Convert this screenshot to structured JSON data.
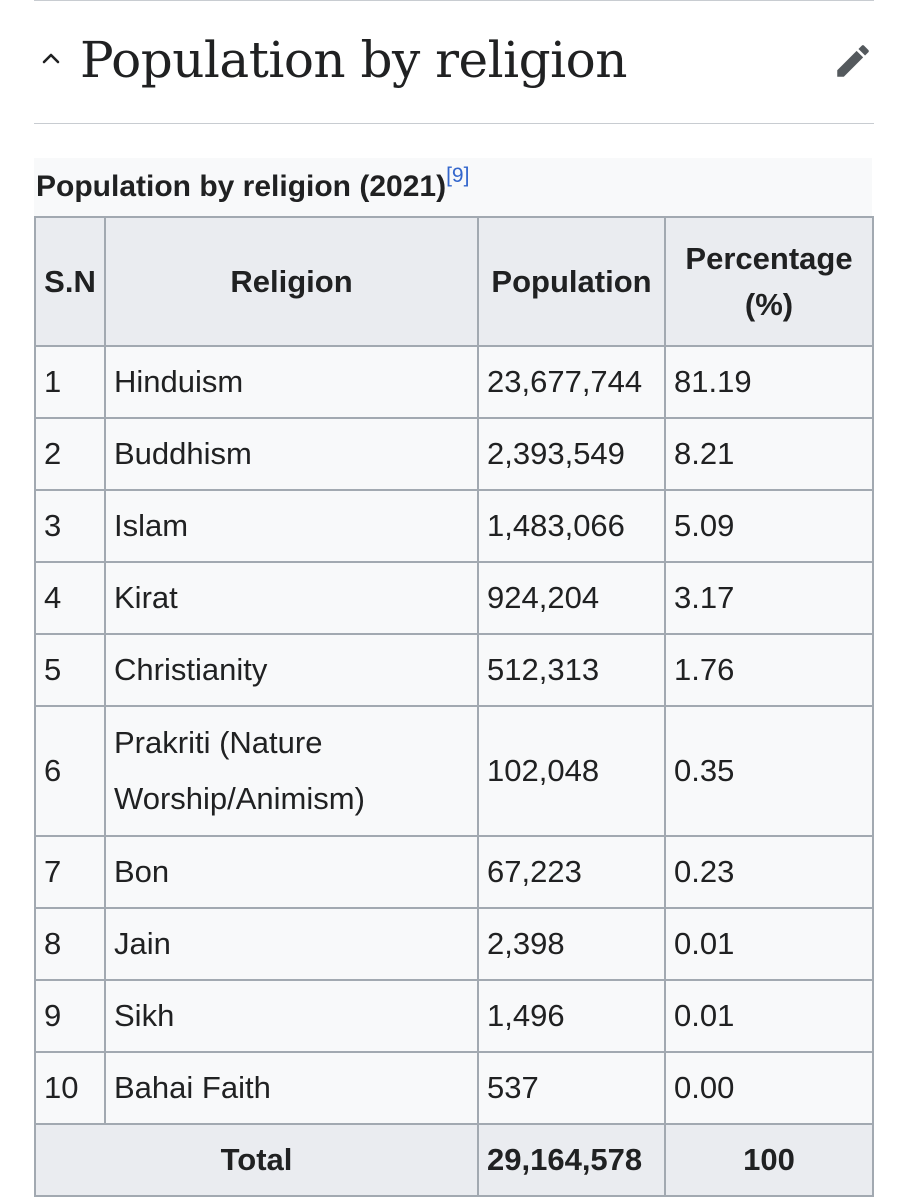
{
  "section": {
    "title": "Population by religion",
    "collapse_icon": "chevron-up-icon",
    "edit_icon": "pencil-icon"
  },
  "table": {
    "caption": "Population by religion (2021)",
    "reference": "[9]",
    "headers": {
      "sn": "S.N",
      "religion": "Religion",
      "population": "Population",
      "percentage": "Percentage (%)"
    },
    "rows": [
      {
        "sn": "1",
        "religion": "Hinduism",
        "population": "23,677,744",
        "percentage": "81.19"
      },
      {
        "sn": "2",
        "religion": "Buddhism",
        "population": "2,393,549",
        "percentage": "8.21"
      },
      {
        "sn": "3",
        "religion": "Islam",
        "population": "1,483,066",
        "percentage": "5.09"
      },
      {
        "sn": "4",
        "religion": "Kirat",
        "population": "924,204",
        "percentage": "3.17"
      },
      {
        "sn": "5",
        "religion": "Christianity",
        "population": "512,313",
        "percentage": "1.76"
      },
      {
        "sn": "6",
        "religion": "Prakriti (Nature Worship/Animism)",
        "population": "102,048",
        "percentage": "0.35"
      },
      {
        "sn": "7",
        "religion": "Bon",
        "population": "67,223",
        "percentage": "0.23"
      },
      {
        "sn": "8",
        "religion": "Jain",
        "population": "2,398",
        "percentage": "0.01"
      },
      {
        "sn": "9",
        "religion": "Sikh",
        "population": "1,496",
        "percentage": "0.01"
      },
      {
        "sn": "10",
        "religion": "Bahai Faith",
        "population": "537",
        "percentage": "0.00"
      }
    ],
    "total": {
      "label": "Total",
      "population": "29,164,578",
      "percentage": "100"
    }
  },
  "colors": {
    "text": "#202122",
    "border": "#a2a9b1",
    "header_bg": "#eaecf0",
    "cell_bg": "#f8f9fa",
    "link": "#3366cc",
    "icon": "#54595d"
  }
}
